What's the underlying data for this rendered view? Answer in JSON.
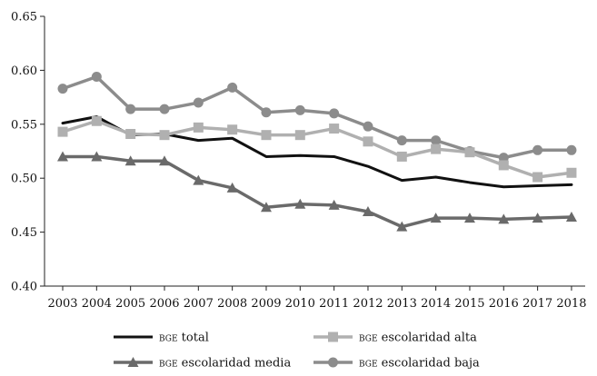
{
  "chart_data": {
    "type": "line",
    "title": "",
    "xlabel": "",
    "ylabel": "",
    "ylim": [
      0.4,
      0.65
    ],
    "y_ticks": [
      "0.40",
      "0.45",
      "0.50",
      "0.55",
      "0.60",
      "0.65"
    ],
    "y_tick_values": [
      0.4,
      0.45,
      0.5,
      0.55,
      0.6,
      0.65
    ],
    "categories": [
      "2003",
      "2004",
      "2005",
      "2006",
      "2007",
      "2008",
      "2009",
      "2010",
      "2011",
      "2012",
      "2013",
      "2014",
      "2015",
      "2016",
      "2017",
      "2018"
    ],
    "grid": false,
    "legend_position": "bottom",
    "series": [
      {
        "name_prefix": "bge",
        "name_suffix": " total",
        "color": "#111111",
        "marker": "none",
        "values": [
          0.551,
          0.557,
          0.54,
          0.541,
          0.535,
          0.537,
          0.52,
          0.521,
          0.52,
          0.511,
          0.498,
          0.501,
          0.496,
          0.492,
          0.493,
          0.494
        ]
      },
      {
        "name_prefix": "bge",
        "name_suffix": " escolaridad alta",
        "color": "#b0b0b0",
        "marker": "square",
        "values": [
          0.543,
          0.553,
          0.541,
          0.54,
          0.547,
          0.545,
          0.54,
          0.54,
          0.546,
          0.534,
          0.52,
          0.527,
          0.524,
          0.512,
          0.501,
          0.505
        ]
      },
      {
        "name_prefix": "bge",
        "name_suffix": " escolaridad media",
        "color": "#6a6a6a",
        "marker": "triangle",
        "values": [
          0.52,
          0.52,
          0.516,
          0.516,
          0.498,
          0.491,
          0.473,
          0.476,
          0.475,
          0.469,
          0.455,
          0.463,
          0.463,
          0.462,
          0.463,
          0.464
        ]
      },
      {
        "name_prefix": "bge",
        "name_suffix": " escolaridad baja",
        "color": "#8c8c8c",
        "marker": "circle",
        "values": [
          0.583,
          0.594,
          0.564,
          0.564,
          0.57,
          0.584,
          0.561,
          0.563,
          0.56,
          0.548,
          0.535,
          0.535,
          0.525,
          0.519,
          0.526,
          0.526
        ]
      }
    ]
  }
}
